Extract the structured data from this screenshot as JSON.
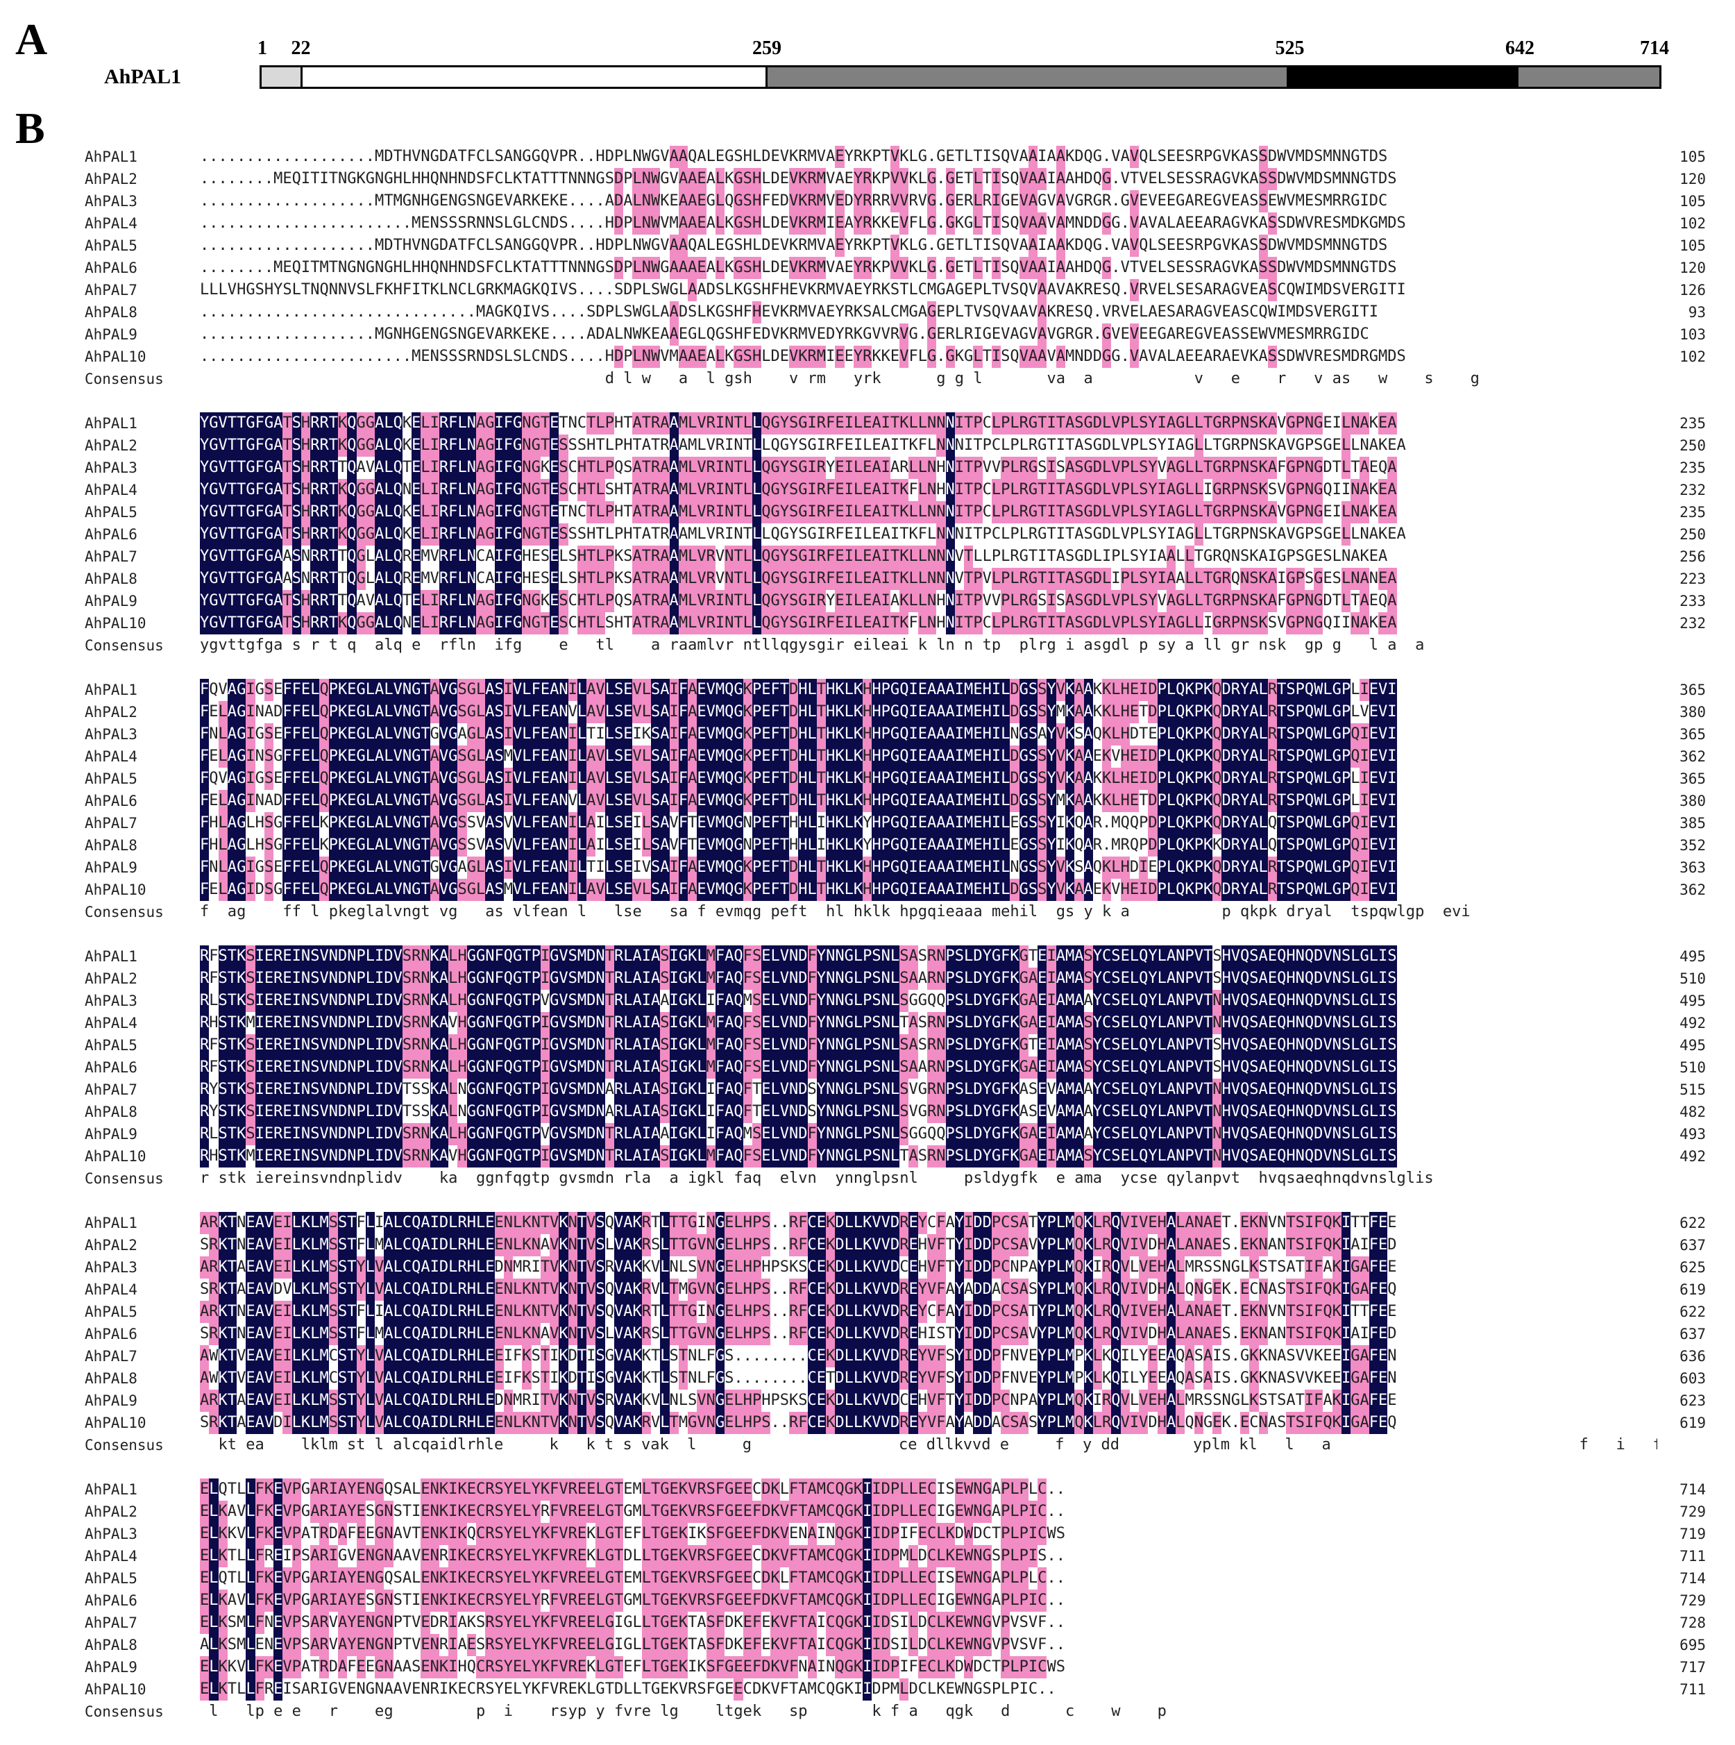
{
  "panels": {
    "a": "A",
    "b": "B"
  },
  "domain_bar": {
    "protein": "AhPAL1",
    "total": 714,
    "positions": [
      "1",
      "22",
      "259",
      "525",
      "642",
      "714"
    ],
    "segments": [
      {
        "start": 1,
        "end": 22,
        "color": "#d9d9d9"
      },
      {
        "start": 22,
        "end": 259,
        "color": "#ffffff"
      },
      {
        "start": 259,
        "end": 525,
        "color": "#808080"
      },
      {
        "start": 525,
        "end": 642,
        "color": "#000000"
      },
      {
        "start": 642,
        "end": 714,
        "color": "#808080"
      }
    ]
  },
  "colors": {
    "identical": "#0b0b4a",
    "similar": "#f28cc4"
  },
  "blocks": [
    {
      "rows": [
        {
          "name": "AhPAL1",
          "seq": "...................MDTHVNGDATFCLSANGGQVPR..HDPLNWGVAAQALEGSHLDEVKRMVAEYRKPTVKLG.GETLTISQVAAIAAKDQG.VAVQLSEESRPGVKASSDWVMDSMNNGTDS",
          "end": "105"
        },
        {
          "name": "AhPAL2",
          "seq": "........MEQITITNGKGNGHLHHQNHNDSFCLKTATTTNNNGSDPLNWGVAAEALKGSHLDEVKRMVAEYRKPVVKLG.GETLTISQVAAIAAHDQG.VTVELSESSRAGVKASSDWVMDSMNNGTDS",
          "end": "120"
        },
        {
          "name": "AhPAL3",
          "seq": "...................MTMGNHGENGSNGEVARKEKE....ADALNWKEAAEGLQGSHFEDVKRMVEDYRRRVVRVG.GERLRIGEVAGVAVGRGR.GVEVEEGAREGVEASSEWVMESMRRGIDC",
          "end": "105"
        },
        {
          "name": "AhPAL4",
          "seq": ".......................MENSSSRNNSLGLCNDS....HDPLNWVMAAEALKGSHLDEVKRMIEAYRKKEVFLG.GKGLTISQVAAVAMNDDGG.VAVALAEEARAGVKASSDWVRESMDKGMDS",
          "end": "102"
        },
        {
          "name": "AhPAL5",
          "seq": "...................MDTHVNGDATFCLSANGGQVPR..HDPLNWGVAAQALEGSHLDEVKRMVAEYRKPTVKLG.GETLTISQVAAIAAKDQG.VAVQLSEESRPGVKASSDWVMDSMNNGTDS",
          "end": "105"
        },
        {
          "name": "AhPAL6",
          "seq": "........MEQITMTNGNGNGHLHHQNHNDSFCLKTATTTNNNGSDPLNWGAAAEALKGSHLDEVKRMVAEYRKPVVKLG.GETLTISQVAAIAAHDQG.VTVELSESSRAGVKASSDWVMDSMNNGTDS",
          "end": "120"
        },
        {
          "name": "AhPAL7",
          "seq": "LLLVHGSHYSLTNQNNVSLFKHFITKLNCLGRKMAGKQIVS....SDPLSWGLAADSLKGSHFHEVKRMVAEYRKSTLCMGAGEPLTVSQVAAVAKRESQ.VRVELSESARAGVEASCQWIMDSVERGITI",
          "end": "126"
        },
        {
          "name": "AhPAL8",
          "seq": "..............................MAGKQIVS....SDPLSWGLAADSLKGSHFHEVKRMVAEYRKSALCMGAGEPLTVSQVAAVAKRESQ.VRVELAESARAGVEASCQWIMDSVERGITI",
          "end": "93"
        },
        {
          "name": "AhPAL9",
          "seq": "...................MGNHGENGSNGEVARKEKE....ADALNWKEAAEGLQGSHFEDVKRMVEDYRKGVVRVG.GERLRIGEVAGVAVGRGR.GVEVEEGAREGVEASSEWVMESMRRGIDC",
          "end": "103"
        },
        {
          "name": "AhPAL10",
          "seq": ".......................MENSSSRNDSLSLCNDS....HDPLNWVMAAEALKGSHLDEVKRMIEEYRKKEVFLG.GKGLTISQVAAVAMNDDGG.VAVALAEEARAEVKASSDWVRESMDRGMDS",
          "end": "102"
        }
      ],
      "consensus": "                                            d l w   a  l gsh    v rm   yrk      g g l       va  a           v   e    r   v as   w    s    g "
    },
    {
      "rows": [
        {
          "name": "AhPAL1",
          "seq": "YGVTTGFGATSHRRTKQGGALQKELIRFLNAGIFGNGTETNCTLPHTATRAAMLVRINTLLQGYSGIRFEILEAITKLLNNNITPCLPLRGTITASGDLVPLSYIAGLLTGRPNSKAVGPNGEILNAKEA",
          "end": "235"
        },
        {
          "name": "AhPAL2",
          "seq": "YGVTTGFGATSHRRTKQGGALQKELIRFLNAGIFGNGTESSSHTLPHTATRAAMLVRINTLLQGYSGIRFEILEAITKFLNNNITPCLPLRGTITASGDLVPLSYIAGLLTGRPNSKAVGPSGELLNAKEA",
          "end": "250"
        },
        {
          "name": "AhPAL3",
          "seq": "YGVTTGFGATSHRRTTQAVALQTELIRFLNAGIFGNGKESCHTLPQSATRAAMLVRINTLLQGYSGIRYEILEAIARLLNHNITPVVPLRGSISASGDLVPLSYVAGLLTGRPNSKAFGPNGDTLTAEQA",
          "end": "235"
        },
        {
          "name": "AhPAL4",
          "seq": "YGVTTGFGATSHRRTKQGGALQNELIRFLNAGIFGNGTESCHTLSHTATRAAMLVRINTLLQGYSGIRFEILEAITKFLNHNITPCLPLRGTITASGDLVPLSYIAGLLIGRPNSKSVGPNGQIINAKEA",
          "end": "232"
        },
        {
          "name": "AhPAL5",
          "seq": "YGVTTGFGATSHRRTKQGGALQKELIRFLNAGIFGNGTETNCTLPHTATRAAMLVRINTLLQGYSGIRFEILEAITKLLNNNITPCLPLRGTITASGDLVPLSYIAGLLTGRPNSKAVGPNGEILNAKEA",
          "end": "235"
        },
        {
          "name": "AhPAL6",
          "seq": "YGVTTGFGATSHRRTKQGGALQKELIRFLNAGIFGNGTESSSHTLPHTATRAAMLVRINTLLQGYSGIRFEILEAITKFLNNNITPCLPLRGTITASGDLVPLSYIAGLLTGRPNSKAVGPSGELLNAKEA",
          "end": "250"
        },
        {
          "name": "AhPAL7",
          "seq": "YGVTTGFGAASNRRTTQGLALQREMVRFLNCAIFGHESELSHTLPKSATRAAMLVRVNTLLQGYSGIRFEILEAITKLLNNNVTLLPLRGTITASGDLIPLSYIAALLTGRQNSKAIGPSGESLNAKEA",
          "end": "256"
        },
        {
          "name": "AhPAL8",
          "seq": "YGVTTGFGAASNRRTTQGLALQREMVRFLNCAIFGHESELSHTLPKSATRAAMLVRVNTLLQGYSGIRFEILEAITKLLNNNVTPVLPLRGTITASGDLIPLSYIAALLTGRQNSKAIGPSGESLNANEA",
          "end": "223"
        },
        {
          "name": "AhPAL9",
          "seq": "YGVTTGFGATSHRRTTQAVALQTELIRFLNAGIFGNGKESCHTLPQSATRAAMLVRINTLLQGYSGIRYEILEAIAKLLNHNITPVVPLRGSISASGDLVPLSYVAGLLTGRPNSKAFGPNGDTLTAEQA",
          "end": "233"
        },
        {
          "name": "AhPAL10",
          "seq": "YGVTTGFGATSHRRTKQGGALQNELIRFLNAGIFGNGTESCHTLSHTATRAAMLVRINTLLQGYSGIRFEILEAITKFLNHNITPCLPLRGTITASGDLVPLSYIAGLLIGRPNSKSVGPNGQIINAKEA",
          "end": "232"
        }
      ],
      "consensus": "ygvttgfga s r t q  alq e  rfln  ifg    e   tl    a raamlvr ntllqgysgir eileai k ln n tp  plrg i asgdl p sy a ll gr nsk  gp g   l a  a"
    },
    {
      "rows": [
        {
          "name": "AhPAL1",
          "seq": "FQVAGIGSEFFELQPKEGLALVNGTAVGSGLASIVLFEANILAVLSEVLSAIFAEVMQGKPEFTDHLTHKLKHHPGQIEAAAIMEHILDGSSYVKAAKKLHEIDPLQKPKQDRYALRTSPQWLGPLIEVI",
          "end": "365"
        },
        {
          "name": "AhPAL2",
          "seq": "FELAGINADFFELQPKEGLALVNGTAVGSGLASIVLFEANVLAVLSEVLSAIFAEVMQGKPEFTDHLTHKLKHHPGQIEAAAIMEHILDGSSYMKAAKKLHETDPLQKPKQDRYALRTSPQWLGPLVEVI",
          "end": "380"
        },
        {
          "name": "AhPAL3",
          "seq": "FNLAGIGSEFFELQPKEGLALVNGTGVGAGLASIVLFEANILTILSEIKSAIFAEVMQGKPEFTDHLTHKLKHHPGQIEAAAIMEHILNGSAYVKSAQKLHDTEPLQKPKQDRYALRTSPQWLGPQIEVI",
          "end": "365"
        },
        {
          "name": "AhPAL4",
          "seq": "FELAGINSGFFELQPKEGLALVNGTAVGSGLASMVLFEANILAVLSEVLSAIFAEVMQGKPEFTDHLTHKLKHHPGQIEAAAIMEHILDGSSYVKAAEKVHEIDPLQKPKQDRYALRTSPQWLGPQIEVI",
          "end": "362"
        },
        {
          "name": "AhPAL5",
          "seq": "FQVAGIGSEFFELQPKEGLALVNGTAVGSGLASIVLFEANILAVLSEVLSAIFAEVMQGKPEFTDHLTHKLKHHPGQIEAAAIMEHILDGSSYVKAAKKLHEIDPLQKPKQDRYALRTSPQWLGPLIEVI",
          "end": "365"
        },
        {
          "name": "AhPAL6",
          "seq": "FELAGINADFFELQPKEGLALVNGTAVGSGLASIVLFEANVLAVLSEVLSAIFAEVMQGKPEFTDHLTHKLKHHPGQIEAAAIMEHILDGSSYMKAAKKLHETDPLQKPKQDRYALRTSPQWLGPLIEVI",
          "end": "380"
        },
        {
          "name": "AhPAL7",
          "seq": "FHLAGLHSGFFELKPKEGLALVNGTAVGSSVASVVLFEANILAILSEILSAVFTEVMQGNPEFTHHLIHKLKYHPGQIEAAAIMEHILEGSSYIKQAR.MQQPDPLQKPKQDRYALQTSPQWLGPQIEVI",
          "end": "385"
        },
        {
          "name": "AhPAL8",
          "seq": "FHLAGLHSGFFELKPKEGLALVNGTAVGSSVASVVLFEANILAILSEILSAVFTEVMQGNPEFTHHLIHKLKYHPGQIEAAAIMEHILEGSSYIKQAR.MRQPDPLQKPKKDRYALQTSPQWLGPQIEVI",
          "end": "352"
        },
        {
          "name": "AhPAL9",
          "seq": "FNLAGIGSEFFELQPKEGLALVNGTGVGAGLASIVLFEANILTILSEIVSAIFAEVMQGKPEFTDHLTHKLKHHPGQIEAAAIMEHILNGSSYVKSAQKLHDIEPLQKPKQDRYALRTSPQWLGPQIEVI",
          "end": "363"
        },
        {
          "name": "AhPAL10",
          "seq": "FELAGIDSGFFELQPKEGLALVNGTAVGSGLASMVLFEANILAVLSEVLSAIFAEVMQGKPEFTDHLTHKLKHHPGQIEAAAIMEHILDGSSYVKAAEKVHEIDPLQKPKQDRYALRTSPQWLGPQIEVI",
          "end": "362"
        }
      ],
      "consensus": "f  ag    ff l pkeglalvngt vg   as vlfean l   lse   sa f evmqg peft  hl hklk hpgqieaaa mehil  gs y k a          p qkpk dryal  tspqwlgp  evi"
    },
    {
      "rows": [
        {
          "name": "AhPAL1",
          "seq": "RFSTKSIEREINSVNDNPLIDVSRNKALHGGNFQGTPIGVSMDNTRLAIASIGKLMFAQFSELVNDFYNNGLPSNLSASRNPSLDYGFKGTEIAMASYCSELQYLANPVTSHVQSAEQHNQDVNSLGLIS",
          "end": "495"
        },
        {
          "name": "AhPAL2",
          "seq": "RFSTKSIEREINSVNDNPLIDVSRNKALHGGNFQGTPIGVSMDNTRLAIASIGKLMFAQFSELVNDFYNNGLPSNLSAARNPSLDYGFKGAEIAMASYCSELQYLANPVTSHVQSAEQHNQDVNSLGLIS",
          "end": "510"
        },
        {
          "name": "AhPAL3",
          "seq": "RLSTKSIEREINSVNDNPLIDVSRNKALHGGNFQGTPVGVSMDNTRLAIAAIGKLIFAQMSELVNDFYNNGLPSNLSGGQQPSLDYGFKGAEIAMAAYCSELQYLANPVTNHVQSAEQHNQDVNSLGLIS",
          "end": "495"
        },
        {
          "name": "AhPAL4",
          "seq": "RHSTKMIEREINSVNDNPLIDVSRNKAVHGGNFQGTPIGVSMDNTRLAIASIGKLMFAQFSELVNDFYNNGLPSNLTASRNPSLDYGFKGAEIAMASYCSELQYLANPVTNHVQSAEQHNQDVNSLGLIS",
          "end": "492"
        },
        {
          "name": "AhPAL5",
          "seq": "RFSTKSIEREINSVNDNPLIDVSRNKALHGGNFQGTPIGVSMDNTRLAIASIGKLMFAQFSELVNDFYNNGLPSNLSASRNPSLDYGFKGTEIAMASYCSELQYLANPVTSHVQSAEQHNQDVNSLGLIS",
          "end": "495"
        },
        {
          "name": "AhPAL6",
          "seq": "RFSTKSIEREINSVNDNPLIDVSRNKALHGGNFQGTPIGVSMDNTRLAIASIGKLMFAQFSELVNDFYNNGLPSNLSAARNPSLDYGFKGAEIAMASYCSELQYLANPVTSHVQSAEQHNQDVNSLGLIS",
          "end": "510"
        },
        {
          "name": "AhPAL7",
          "seq": "RYSTKSIEREINSVNDNPLIDVTSSKALNGGNFQGTPIGVSMDNARLAIASIGKLIFAQFTELVNDSYNNGLPSNLSVGRNPSLDYGFKASEVAMAAYCSELQYLANPVTNHVQSAEQHNQDVNSLGLIS",
          "end": "515"
        },
        {
          "name": "AhPAL8",
          "seq": "RYSTKSIEREINSVNDNPLIDVTSSKALNGGNFQGTPIGVSMDNARLAIASIGKLIFAQFTELVNDSYNNGLPSNLSVGRNPSLDYGFKASEVAMAAYCSELQYLANPVTNHVQSAEQHNQDVNSLGLIS",
          "end": "482"
        },
        {
          "name": "AhPAL9",
          "seq": "RLSTKSIEREINSVNDNPLIDVSRNKALHGGNFQGTPVGVSMDNTRLAIAAIGKLIFAQMSELVNDFYNNGLPSNLSGGQQPSLDYGFKGAEIAMAAYCSELQYLANPVTNHVQSAEQHNQDVNSLGLIS",
          "end": "493"
        },
        {
          "name": "AhPAL10",
          "seq": "RHSTKMIEREINSVNDNPLIDVSRNKAVHGGNFQGTPIGVSMDNTRLAIASIGKLMFAQFSELVNDFYNNGLPSNLTASRNPSLDYGFKGAEIAMASYCSELQYLANPVTNHVQSAEQHNQDVNSLGLIS",
          "end": "492"
        }
      ],
      "consensus": "r stk iereinsvndnplidv    ka  ggnfqgtp gvsmdn rla  a igkl faq  elvn  ynnglpsnl     psldygfk  e ama  ycse qylanpvt  hvqsaeqhnqdvnslglis"
    },
    {
      "rows": [
        {
          "name": "AhPAL1",
          "seq": "ARKTNEAVEILKLMSSTFLIALCQAIDLRHLEENLKNTVKNTVSQVAKRTLTTGINGELHPS..RFCEKDLLKVVDREYCFAYIDDPCSATYPLMQKLRQVIVEHALANAET.EKNVNTSIFQKITTFEE",
          "end": "622"
        },
        {
          "name": "AhPAL2",
          "seq": "SRKTNEAVEILKLMSSTFLMALCQAIDLRHLEENLKNAVKNTVSLVAKRSLTTGVNGELHPS..RFCEKDLLKVVDREHVFTYIDDPCSAVYPLMQKLRQVIVDHALANAES.EKNANTSIFQKIAIFED",
          "end": "637"
        },
        {
          "name": "AhPAL3",
          "seq": "ARKTAEAVEILKLMSSTYLVALCQAIDLRHLEDNMRITVKNTVSRVAKKVLNLSVNGELHPHPSKSCEKDLLKVVDCEHVFTYIDDPCNPAYPLMQKIRQVLVEHALMRSSNGLKSTSATIFAKIGAFEE",
          "end": "625"
        },
        {
          "name": "AhPAL4",
          "seq": "SRKTAEAVDVLKLMSSTYLVALCQAIDLRHLEENLKNTVKNTVSQVAKRVLTMGVNGELHPS..RFCEKDLLKVVDREYVFAYADDACSASYPLMQKLRQVIVDHALQNGEK.ECNASTSIFQKIGAFEQ",
          "end": "619"
        },
        {
          "name": "AhPAL5",
          "seq": "ARKTNEAVEILKLMSSTFLIALCQAIDLRHLEENLKNTVKNTVSQVAKRTLTTGINGELHPS..RFCEKDLLKVVDREYCFAYIDDPCSATYPLMQKLRQVIVEHALANAET.EKNVNTSIFQKITTFEE",
          "end": "622"
        },
        {
          "name": "AhPAL6",
          "seq": "SRKTNEAVEILKLMSSTFLMALCQAIDLRHLEENLKNAVKNTVSLVAKRSLTTGVNGELHPS..RFCEKDLLKVVDREHISTYIDDPCSAVYPLMQKLRQVIVDHALANAES.EKNANTSIFQKIAIFED",
          "end": "637"
        },
        {
          "name": "AhPAL7",
          "seq": "AWKTVEAVEILKLMCSTYLVALCQAIDLRHLEEIFKSTIKDTISGVAKKTLSTNLFGS........CEKDLLKVVDREYVFSYIDDPFNVEYPLMPKLKQILYEEAQASAIS.GKKNASVVKEEIGAFEN",
          "end": "636"
        },
        {
          "name": "AhPAL8",
          "seq": "AWKTVEAVEILKLMCSTYLVALCQAIDLRHLEEIFKSTIKDTISGVAKKTLSTNLFGS........CETDLLKVVDREYVFSYIDDPFNVEYPLMPKLKQILYEEAQASAIS.GKKNASVVKEEIGAFEN",
          "end": "603"
        },
        {
          "name": "AhPAL9",
          "seq": "ARKTAEAVEILKLMSSTYLVALCQAIDLRHLEDNMRITVKNTVSRVAKKVLNLSVNGELHPHPSKSCEKDLLKVVDCEHVFTYIDDPCNPAYPLMQKIRQVLVEHALMRSSNGLKSTSATIFAKIGAFEE",
          "end": "623"
        },
        {
          "name": "AhPAL10",
          "seq": "SRKTAEAVDILKLMSSTYLVALCQAIDLRHLEENLKNTVKNTVSQVAKRVLTMGVNGELHPS..RFCEKDLLKVVDREYVFAYADDACSASYPLMQKLRQVIVDHALQNGEK.ECNASTSIFQKIGAFEQ",
          "end": "619"
        }
      ],
      "consensus": "  kt ea    lklm st l alcqaidlrhle     k   k t s vak  l     g                ce dllkvvd e     f  y dd        yplm kl   l   a                           f   i   fe "
    },
    {
      "rows": [
        {
          "name": "AhPAL1",
          "seq": "ELQTLLFKEVPGARIAYENGQSALENKIKECRSYELYKFVREELGTEMLTGEKVRSFGEECDKLFTAMCQGKIIDPLLECISEWNGAPLPLC..",
          "end": "714"
        },
        {
          "name": "AhPAL2",
          "seq": "ELKAVLFKEVPGARIAYESGNSTIENKIKECRSYELYRFVREELGTGMLTGEKVRSFGEEFDKVFTAMCQGKIIDPLLECIGEWNGAPLPIC..",
          "end": "729"
        },
        {
          "name": "AhPAL3",
          "seq": "ELKKVLFKEVPATRDAFEEGNAVTENKIKQCRSYELYKFVREKLGTEFLTGEKIKSFGEEFDKVENAINQGKIIDPIFECLKDWDCTPLPICWS",
          "end": "719"
        },
        {
          "name": "AhPAL4",
          "seq": "ELKTLLFREIPSARIGVENGNAAVENRIKECRSYELYKFVREKLGTDLLTGEKVRSFGEECDKVFTAMCQGKIIDPMLDCLKEWNGSPLPIS..",
          "end": "711"
        },
        {
          "name": "AhPAL5",
          "seq": "ELQTLLFKEVPGARIAYENGQSALENKIKECRSYELYKFVREELGTEMLTGEKVRSFGEECDKLFTAMCQGKIIDPLLECISEWNGAPLPLC..",
          "end": "714"
        },
        {
          "name": "AhPAL6",
          "seq": "ELKAVLFKEVPGARIAYESGNSTIENKIKECRSYELYRFVREELGTGMLTGEKVRSFGEEFDKVFTAMCQGKIIDPLLECIGEWNGAPLPIC..",
          "end": "729"
        },
        {
          "name": "AhPAL7",
          "seq": "ELKSMLFNEVPSARVAYENGNPTVEDRIAKSRSYELYKFVREELGIGLLTGEKTASFDKEFEKVFTAICQGKIIDSILDCLKEWNGVPVSVF..",
          "end": "728"
        },
        {
          "name": "AhPAL8",
          "seq": "ALKSMLENEVPSARVAYENGNPTVENRIAESRSYELYKFVREELGIGLLTGEKTASFDKEFEKVFTAICQGKIIDSILDCLKEWNGVPVSVF..",
          "end": "695"
        },
        {
          "name": "AhPAL9",
          "seq": "ELKKVLFKEVPATRDAFEEGNAASENKIHQCRSYELYKFVREKLGTEFLTGEKIKSFGEEFDKVFNAINQGKIIDPIFECLKDWDCTPLPICWS",
          "end": "717"
        },
        {
          "name": "AhPAL10",
          "seq": "ELKTLLFREISARIGVENGNAAVENRIKECRSYELYKFVREKLGTDLLTGEKVRSFGEECDKVFTAMCQGKIIDPMLDCLKEWNGSPLPIC..",
          "end": "711"
        }
      ],
      "consensus": " l   lp e e   r    eg         p  i    rsyp y fvre lg    ltgek   sp       k f a   qgk   d      c    w    p     "
    }
  ]
}
